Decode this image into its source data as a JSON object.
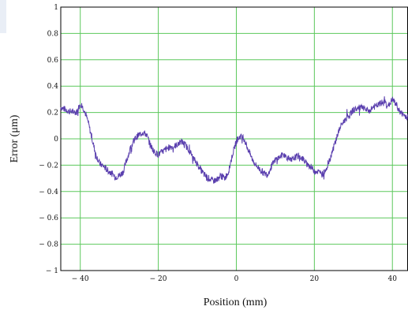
{
  "chart_data": {
    "type": "line",
    "title": "",
    "xlabel": "Position (mm)",
    "ylabel": "Error (μm)",
    "xlim": [
      -45,
      44
    ],
    "ylim": [
      -1,
      1
    ],
    "x_ticks": [
      -40,
      -20,
      0,
      20,
      40
    ],
    "x_tick_labels": [
      "− 40",
      "− 20",
      "0",
      "20",
      "40"
    ],
    "y_ticks": [
      1,
      0.8,
      0.6,
      0.4,
      0.2,
      0,
      -0.2,
      -0.4,
      -0.6,
      -0.8,
      -1
    ],
    "y_tick_labels": [
      "1",
      "0.8",
      "0.6",
      "0.4",
      "0.2",
      "0",
      "− 0.2",
      "− 0.4",
      "− 0.6",
      "− 0.8",
      "− 1"
    ],
    "grid": true,
    "colors": {
      "grid": "#5cc85c",
      "line": "#5a3fae",
      "frame": "#000000"
    },
    "series": [
      {
        "x": [
          -45,
          -43,
          -41,
          -40,
          -39,
          -38,
          -37,
          -36,
          -35,
          -34,
          -33,
          -32,
          -31,
          -30,
          -29,
          -28,
          -27,
          -26,
          -25,
          -24,
          -23,
          -22,
          -21,
          -20,
          -19,
          -18,
          -17,
          -16,
          -15,
          -14,
          -13,
          -12,
          -11,
          -10,
          -9,
          -8,
          -7,
          -6,
          -5,
          -4,
          -3,
          -2,
          -1,
          0,
          1,
          2,
          3,
          4,
          5,
          6,
          7,
          8,
          9,
          10,
          11,
          12,
          13,
          14,
          15,
          16,
          17,
          18,
          19,
          20,
          21,
          22,
          23,
          24,
          25,
          26,
          27,
          28,
          29,
          30,
          31,
          32,
          33,
          34,
          35,
          36,
          37,
          38,
          39,
          40,
          41,
          42,
          43,
          44
        ],
        "values": [
          0.24,
          0.21,
          0.2,
          0.27,
          0.22,
          0.13,
          0.0,
          -0.12,
          -0.19,
          -0.21,
          -0.24,
          -0.26,
          -0.29,
          -0.28,
          -0.25,
          -0.15,
          -0.06,
          0.0,
          0.03,
          0.05,
          0.03,
          -0.05,
          -0.1,
          -0.12,
          -0.1,
          -0.08,
          -0.06,
          -0.06,
          -0.04,
          -0.02,
          -0.05,
          -0.09,
          -0.15,
          -0.19,
          -0.24,
          -0.28,
          -0.3,
          -0.32,
          -0.31,
          -0.28,
          -0.3,
          -0.25,
          -0.12,
          -0.02,
          0.02,
          0.0,
          -0.08,
          -0.15,
          -0.2,
          -0.23,
          -0.26,
          -0.27,
          -0.21,
          -0.16,
          -0.14,
          -0.12,
          -0.14,
          -0.17,
          -0.14,
          -0.13,
          -0.15,
          -0.19,
          -0.21,
          -0.24,
          -0.25,
          -0.27,
          -0.23,
          -0.15,
          -0.06,
          0.04,
          0.11,
          0.15,
          0.18,
          0.22,
          0.23,
          0.24,
          0.22,
          0.21,
          0.24,
          0.25,
          0.27,
          0.28,
          0.25,
          0.3,
          0.26,
          0.2,
          0.18,
          0.16
        ]
      }
    ]
  }
}
